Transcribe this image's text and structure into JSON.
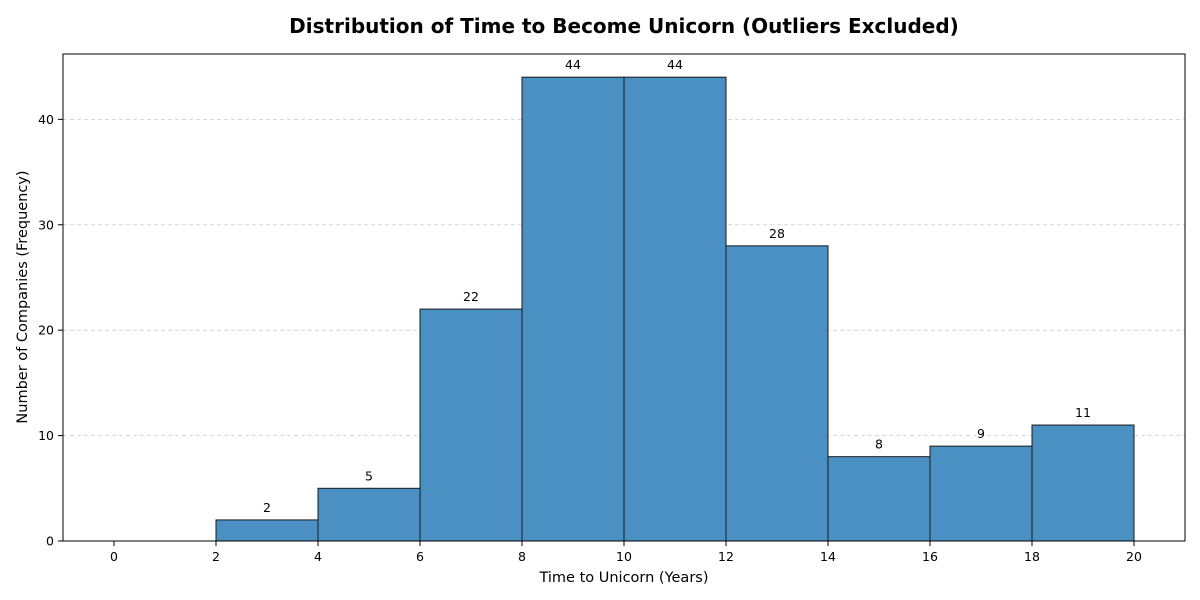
{
  "chart_data": {
    "type": "bar",
    "title": "Distribution of Time to Become Unicorn (Outliers Excluded)",
    "xlabel": "Time to Unicorn (Years)",
    "ylabel": "Number of Companies (Frequency)",
    "bins": [
      {
        "start": 0,
        "end": 2,
        "value": 0
      },
      {
        "start": 2,
        "end": 4,
        "value": 2
      },
      {
        "start": 4,
        "end": 6,
        "value": 5
      },
      {
        "start": 6,
        "end": 8,
        "value": 22
      },
      {
        "start": 8,
        "end": 10,
        "value": 44
      },
      {
        "start": 10,
        "end": 12,
        "value": 44
      },
      {
        "start": 12,
        "end": 14,
        "value": 28
      },
      {
        "start": 14,
        "end": 16,
        "value": 8
      },
      {
        "start": 16,
        "end": 18,
        "value": 9
      },
      {
        "start": 18,
        "end": 20,
        "value": 11
      }
    ],
    "xlim": [
      -1,
      21
    ],
    "ylim": [
      0,
      46.2
    ],
    "xticks": [
      0,
      2,
      4,
      6,
      8,
      10,
      12,
      14,
      16,
      18,
      20
    ],
    "yticks": [
      0,
      10,
      20,
      30,
      40
    ],
    "grid": "y-dashed",
    "bar_color": "#4a90c2",
    "edge_color": "#1a1a1a"
  }
}
